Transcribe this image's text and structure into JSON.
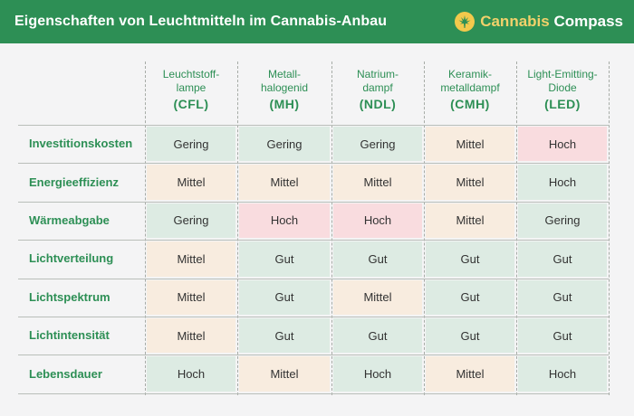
{
  "header": {
    "title": "Eigenschaften von Leuchtmitteln im Cannabis-Anbau",
    "brand_part1": "Cannabis",
    "brand_part2": "Compass"
  },
  "table": {
    "columns": [
      {
        "name": "Leuchtstoff-\nlampe",
        "abbr": "(CFL)"
      },
      {
        "name": "Metall-\nhalogenid",
        "abbr": "(MH)"
      },
      {
        "name": "Natrium-\ndampf",
        "abbr": "(NDL)"
      },
      {
        "name": "Keramik-\nmetalldampf",
        "abbr": "(CMH)"
      },
      {
        "name": "Light-Emitting-\nDiode",
        "abbr": "(LED)"
      }
    ],
    "rows": [
      {
        "label": "Investitionskosten",
        "values": [
          "Gering",
          "Gering",
          "Gering",
          "Mittel",
          "Hoch"
        ],
        "tones": [
          "green",
          "green",
          "green",
          "beige",
          "pink"
        ]
      },
      {
        "label": "Energieeffizienz",
        "values": [
          "Mittel",
          "Mittel",
          "Mittel",
          "Mittel",
          "Hoch"
        ],
        "tones": [
          "beige",
          "beige",
          "beige",
          "beige",
          "green"
        ]
      },
      {
        "label": "Wärmeabgabe",
        "values": [
          "Gering",
          "Hoch",
          "Hoch",
          "Mittel",
          "Gering"
        ],
        "tones": [
          "green",
          "pink",
          "pink",
          "beige",
          "green"
        ]
      },
      {
        "label": "Lichtverteilung",
        "values": [
          "Mittel",
          "Gut",
          "Gut",
          "Gut",
          "Gut"
        ],
        "tones": [
          "beige",
          "green",
          "green",
          "green",
          "green"
        ]
      },
      {
        "label": "Lichtspektrum",
        "values": [
          "Mittel",
          "Gut",
          "Mittel",
          "Gut",
          "Gut"
        ],
        "tones": [
          "beige",
          "green",
          "beige",
          "green",
          "green"
        ]
      },
      {
        "label": "Lichtintensität",
        "values": [
          "Mittel",
          "Gut",
          "Gut",
          "Gut",
          "Gut"
        ],
        "tones": [
          "beige",
          "green",
          "green",
          "green",
          "green"
        ]
      },
      {
        "label": "Lebensdauer",
        "values": [
          "Hoch",
          "Mittel",
          "Hoch",
          "Mittel",
          "Hoch"
        ],
        "tones": [
          "green",
          "beige",
          "green",
          "beige",
          "green"
        ]
      }
    ]
  },
  "colors": {
    "header_bg": "#2d8f55",
    "accent": "#2d8f55",
    "green_cell": "#ddebe3",
    "beige_cell": "#f8ecdf",
    "pink_cell": "#f9dcdf"
  }
}
